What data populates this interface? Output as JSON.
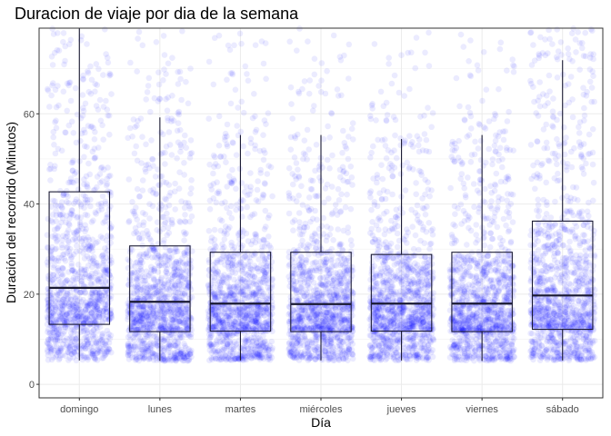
{
  "chart_data": {
    "type": "boxplot",
    "title": "Duracion de viaje por dia de la semana",
    "xlabel": "Día",
    "ylabel": "Duración del recorrido (Minutos)",
    "categories": [
      "domingo",
      "lunes",
      "martes",
      "miércoles",
      "jueves",
      "viernes",
      "sábado"
    ],
    "ylim": [
      -3,
      79
    ],
    "yticks": [
      0,
      20,
      40,
      60
    ],
    "grid": true,
    "legend": "none",
    "box_color": "#1a1a33",
    "point_color": "#0000ff",
    "point_opacity": 0.08,
    "series": [
      {
        "category": "domingo",
        "whisker_low": 5.3,
        "q1": 13.3,
        "median": 21.4,
        "q3": 42.7,
        "whisker_high": 79,
        "points_max": 79
      },
      {
        "category": "lunes",
        "whisker_low": 5.2,
        "q1": 11.7,
        "median": 18.3,
        "q3": 30.7,
        "whisker_high": 59.2,
        "points_max": 79
      },
      {
        "category": "martes",
        "whisker_low": 5.3,
        "q1": 11.8,
        "median": 17.9,
        "q3": 29.3,
        "whisker_high": 55.3,
        "points_max": 79
      },
      {
        "category": "miércoles",
        "whisker_low": 5.3,
        "q1": 11.7,
        "median": 17.8,
        "q3": 29.3,
        "whisker_high": 55.3,
        "points_max": 79
      },
      {
        "category": "jueves",
        "whisker_low": 5.3,
        "q1": 11.8,
        "median": 17.9,
        "q3": 28.8,
        "whisker_high": 54.4,
        "points_max": 79
      },
      {
        "category": "viernes",
        "whisker_low": 5.2,
        "q1": 11.7,
        "median": 17.9,
        "q3": 29.3,
        "whisker_high": 55.3,
        "points_max": 79
      },
      {
        "category": "sábado",
        "whisker_low": 5.3,
        "q1": 12.2,
        "median": 19.7,
        "q3": 36.2,
        "whisker_high": 71.9,
        "points_max": 79
      }
    ]
  }
}
